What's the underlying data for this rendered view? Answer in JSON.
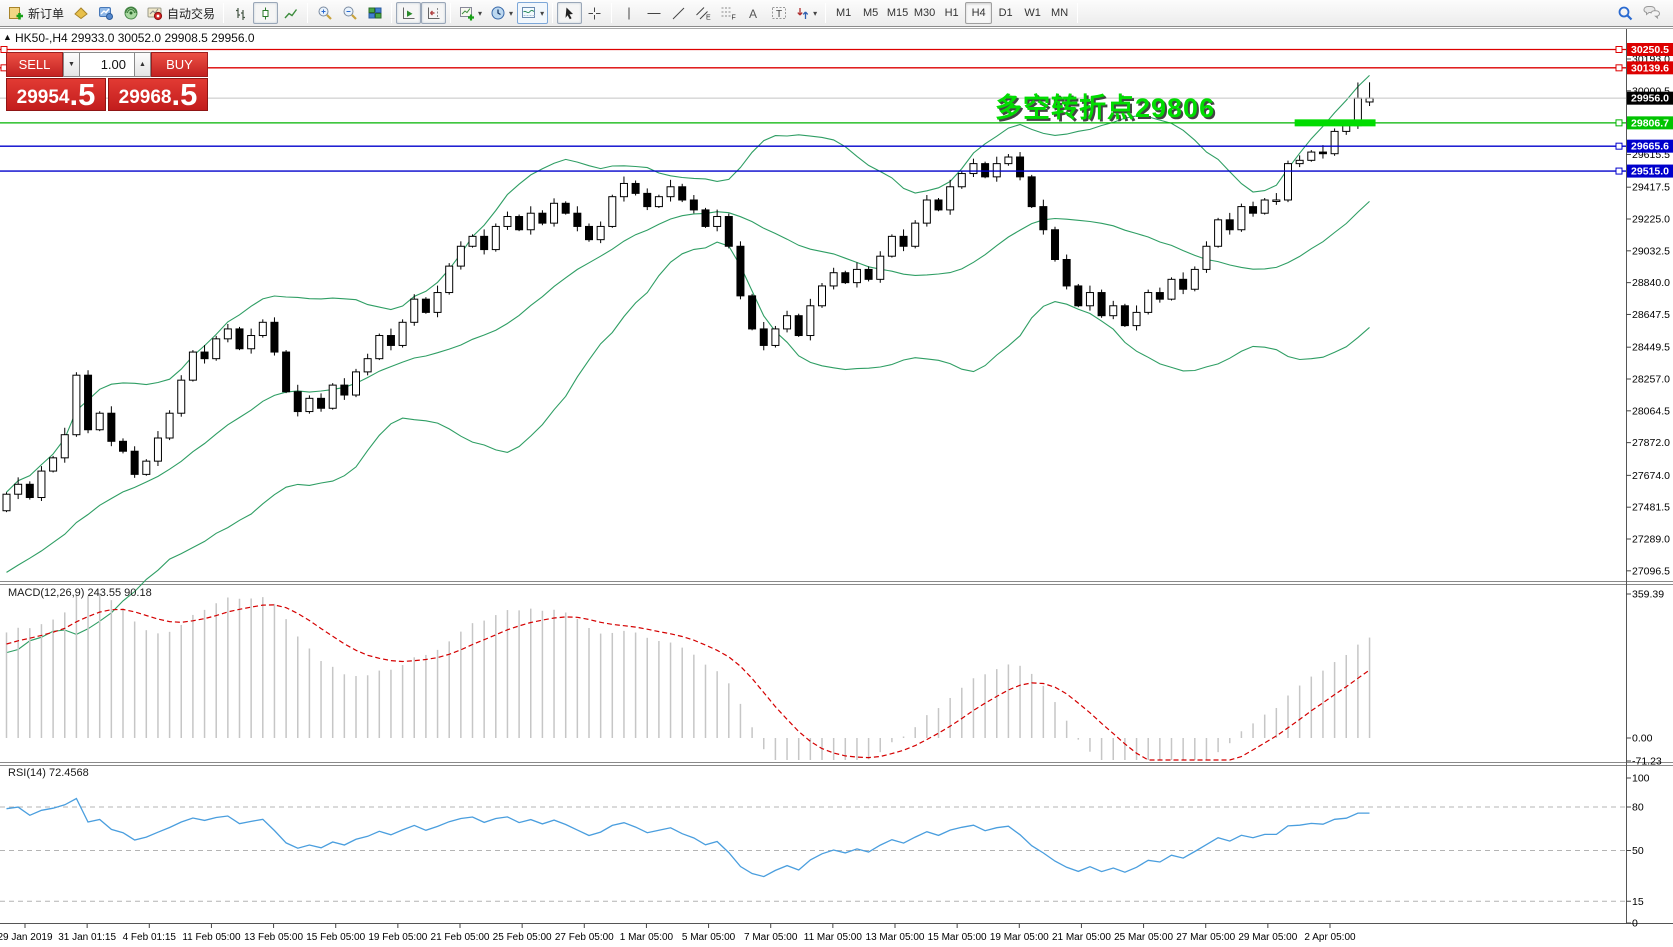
{
  "toolbar": {
    "new_order_label": "新订单",
    "autotrading_label": "自动交易",
    "tool_letters": {
      "channel": "E",
      "fibonacci": "F",
      "text": "A",
      "label": "T"
    },
    "timeframes": [
      "M1",
      "M5",
      "M15",
      "M30",
      "H1",
      "H4",
      "D1",
      "W1",
      "MN"
    ],
    "active_timeframe": "H4"
  },
  "trade_panel": {
    "sell_label": "SELL",
    "buy_label": "BUY",
    "volume": "1.00",
    "sell_price_main": "29954",
    "sell_price_big": ".5",
    "buy_price_main": "29968",
    "buy_price_big": ".5"
  },
  "chart": {
    "title": "HK50-,H4 29933.0 30052.0 29908.5 29956.0",
    "annotation": "多空转折点29806"
  },
  "chart_data": {
    "type": "candlestick",
    "symbol": "HK50-",
    "period": "H4",
    "ohlc_display": {
      "open": 29933.0,
      "high": 30052.0,
      "low": 29908.5,
      "close": 29956.0
    },
    "ylim": [
      27050,
      30360
    ],
    "price_axis_ticks": [
      30193.0,
      30000.5,
      29615.5,
      29417.5,
      29225.0,
      29032.5,
      28840.0,
      28647.5,
      28449.5,
      28257.0,
      28064.5,
      27872.0,
      27674.0,
      27481.5,
      27289.0,
      27096.5
    ],
    "price_lines": [
      {
        "price": 30250.5,
        "color": "#dd0000",
        "label": "30250.5",
        "label_bg": "#dd0000",
        "left_marker": true
      },
      {
        "price": 30139.6,
        "color": "#dd0000",
        "label": "30139.6",
        "label_bg": "#dd0000",
        "left_marker": true
      },
      {
        "price": 29956.0,
        "color": "#c4c4c4",
        "label": "29956.0",
        "label_bg": "#000000",
        "current": true
      },
      {
        "price": 29806.7,
        "color": "#00b400",
        "label": "29806.7",
        "label_bg": "#00c400",
        "highlight_segment": true
      },
      {
        "price": 29665.6,
        "color": "#0000cc",
        "label": "29665.6",
        "label_bg": "#0000cc"
      },
      {
        "price": 29515.0,
        "color": "#0000cc",
        "label": "29515.0",
        "label_bg": "#0000cc"
      }
    ],
    "warmup_closes": [
      26240,
      26330,
      26300,
      26420,
      26380,
      26500,
      26460,
      26580,
      26540,
      26660,
      26620,
      26740,
      26700,
      26820,
      26780,
      26900,
      26860,
      26980,
      26940,
      27060,
      27020,
      27140,
      27100,
      27220,
      27180,
      27300,
      27260,
      27380,
      27340,
      27460
    ],
    "closes": [
      27560,
      27620,
      27540,
      27700,
      27780,
      27920,
      28280,
      27950,
      28050,
      27880,
      27820,
      27680,
      27760,
      27900,
      28050,
      28250,
      28420,
      28380,
      28500,
      28560,
      28440,
      28520,
      28600,
      28420,
      28180,
      28060,
      28140,
      28080,
      28220,
      28160,
      28300,
      28380,
      28520,
      28460,
      28600,
      28740,
      28660,
      28780,
      28940,
      29060,
      29120,
      29040,
      29180,
      29240,
      29160,
      29260,
      29200,
      29320,
      29260,
      29180,
      29100,
      29180,
      29360,
      29440,
      29380,
      29300,
      29360,
      29420,
      29340,
      29280,
      29180,
      29240,
      29060,
      28760,
      28560,
      28460,
      28560,
      28640,
      28520,
      28700,
      28820,
      28900,
      28840,
      28920,
      28860,
      29000,
      29120,
      29060,
      29200,
      29340,
      29280,
      29420,
      29500,
      29560,
      29480,
      29560,
      29600,
      29480,
      29300,
      29160,
      28980,
      28820,
      28700,
      28780,
      28640,
      28700,
      28580,
      28660,
      28780,
      28740,
      28860,
      28800,
      28920,
      29060,
      29220,
      29160,
      29300,
      29260,
      29340,
      29340,
      29560,
      29580,
      29630,
      29620,
      29755,
      29790,
      29956,
      29956
    ],
    "wick_pattern": [
      18,
      30,
      12,
      42
    ],
    "indicators": {
      "bollinger": {
        "period": 20,
        "deviation": 2,
        "color": "#2f9e64"
      },
      "macd": {
        "label": "MACD(12,26,9) 243.55 90.18",
        "axis": [
          359.39,
          0.0,
          -71.23
        ],
        "bar_color": "#c6c6c6",
        "signal_color": "#d40000"
      },
      "rsi": {
        "label": "RSI(14) 72.4568",
        "levels": [
          80,
          50,
          15
        ],
        "axis_labels": [
          100,
          80,
          50,
          15,
          0
        ],
        "color": "#4a9ede"
      }
    },
    "time_axis": [
      "29 Jan 2019",
      "31 Jan 01:15",
      "4 Feb 01:15",
      "11 Feb 05:00",
      "13 Feb 05:00",
      "15 Feb 05:00",
      "19 Feb 05:00",
      "21 Feb 05:00",
      "25 Feb 05:00",
      "27 Feb 05:00",
      "1 Mar 05:00",
      "5 Mar 05:00",
      "7 Mar 05:00",
      "11 Mar 05:00",
      "13 Mar 05:00",
      "15 Mar 05:00",
      "19 Mar 05:00",
      "21 Mar 05:00",
      "25 Mar 05:00",
      "27 Mar 05:00",
      "29 Mar 05:00",
      "2 Apr 05:00"
    ]
  }
}
